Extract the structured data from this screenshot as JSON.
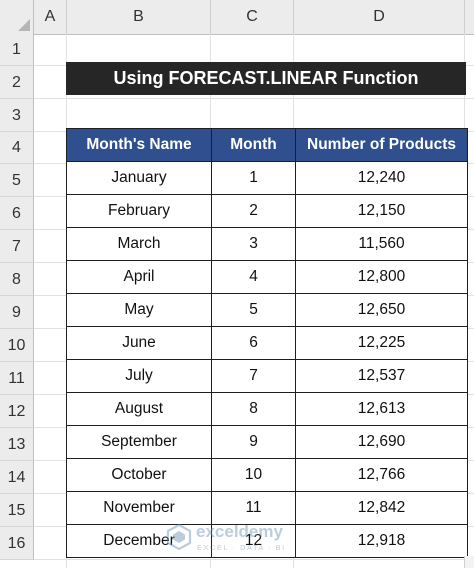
{
  "columns": [
    "A",
    "B",
    "C",
    "D"
  ],
  "rows": [
    "1",
    "2",
    "3",
    "4",
    "5",
    "6",
    "7",
    "8",
    "9",
    "10",
    "11",
    "12",
    "13",
    "14",
    "15",
    "16"
  ],
  "title": "Using FORECAST.LINEAR Function",
  "table": {
    "headers": [
      "Month's Name",
      "Month",
      "Number of Products"
    ],
    "rows": [
      [
        "January",
        "1",
        "12,240"
      ],
      [
        "February",
        "2",
        "12,150"
      ],
      [
        "March",
        "3",
        "11,560"
      ],
      [
        "April",
        "4",
        "12,800"
      ],
      [
        "May",
        "5",
        "12,650"
      ],
      [
        "June",
        "6",
        "12,225"
      ],
      [
        "July",
        "7",
        "12,537"
      ],
      [
        "August",
        "8",
        "12,613"
      ],
      [
        "September",
        "9",
        "12,690"
      ],
      [
        "October",
        "10",
        "12,766"
      ],
      [
        "November",
        "11",
        "12,842"
      ],
      [
        "December",
        "12",
        "12,918"
      ]
    ]
  },
  "watermark": {
    "name": "exceldemy",
    "tagline": "EXCEL · DATA · BI"
  },
  "colors": {
    "title_bg": "#262626",
    "header_bg": "#2f4f8f"
  }
}
